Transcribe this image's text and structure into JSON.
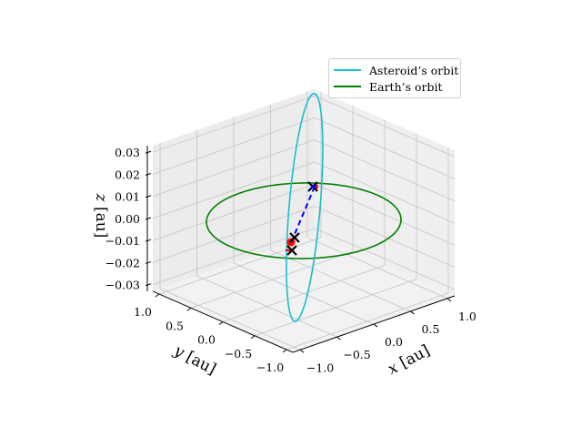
{
  "chart_data": {
    "type": "line3d",
    "title": "",
    "xlabel": "x [au]",
    "ylabel": "y [au]",
    "zlabel": "z [au]",
    "xlim": [
      -1.1,
      1.1
    ],
    "ylim": [
      -1.1,
      1.1
    ],
    "zlim": [
      -0.033,
      0.033
    ],
    "xticks": [
      "−1.0",
      "−0.5",
      "0.0",
      "0.5",
      "1.0"
    ],
    "yticks": [
      "−1.0",
      "−0.5",
      "0.0",
      "0.5",
      "1.0"
    ],
    "zticks": [
      "−0.03",
      "−0.02",
      "−0.01",
      "0.00",
      "0.01",
      "0.02",
      "0.03"
    ],
    "xtick_values": [
      -1.0,
      -0.5,
      0.0,
      0.5,
      1.0
    ],
    "ytick_values": [
      -1.0,
      -0.5,
      0.0,
      0.5,
      1.0
    ],
    "ztick_values": [
      -0.03,
      -0.02,
      -0.01,
      0.0,
      0.01,
      0.02,
      0.03
    ],
    "grid": true,
    "legend_position": "upper right",
    "series": [
      {
        "name": "Asteroid's orbit",
        "color": "#17becf",
        "kind": "ellipse",
        "description": "Tilted elliptical orbit crossing Earth's orbit plane",
        "a": 1.05,
        "e": 0.12,
        "inclination_z_amplitude": 0.03,
        "rotation_deg": 45
      },
      {
        "name": "Earth's orbit",
        "color": "#008000",
        "kind": "circle",
        "radius": 1.0,
        "z": 0.0
      }
    ],
    "markers": [
      {
        "label": "asteroid-position-upper",
        "marker": "x",
        "color": "#000000",
        "x": -0.1,
        "y": -0.1,
        "z": 0.013
      },
      {
        "label": "asteroid-position-lower",
        "marker": "x",
        "color": "#000000",
        "x": -0.78,
        "y": -0.55,
        "z": -0.008
      },
      {
        "label": "earth-position",
        "marker": "x",
        "color": "#000000",
        "x": -0.78,
        "y": -0.62,
        "z": -0.013
      },
      {
        "label": "red-point",
        "marker": "o",
        "color": "#ff0000",
        "x": -0.8,
        "y": -0.58,
        "z": -0.009
      },
      {
        "label": "connection",
        "kind": "dashed-line",
        "color": "#0000ff"
      }
    ]
  },
  "legend": {
    "items": [
      {
        "label": "Asteroid’s orbit",
        "color": "#17becf"
      },
      {
        "label": "Earth’s orbit",
        "color": "#008000"
      }
    ]
  },
  "axes": {
    "x_label_var": "x",
    "x_label_unit": "[au]",
    "y_label_var": "y",
    "y_label_unit": "[au]",
    "z_label_var": "z",
    "z_label_unit": "[au]"
  }
}
